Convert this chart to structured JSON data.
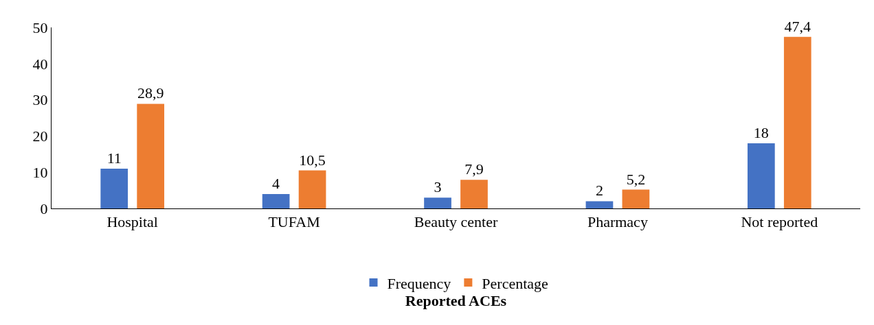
{
  "chart_data": {
    "type": "bar",
    "xlabel": "Reported ACEs",
    "categories": [
      "Hospital",
      "TUFAM",
      "Beauty center",
      "Pharmacy",
      "Not reported"
    ],
    "series": [
      {
        "name": "Frequency",
        "color": "#4472c4",
        "values": [
          11,
          4,
          3,
          2,
          18
        ],
        "value_labels": [
          "11",
          "4",
          "3",
          "2",
          "18"
        ]
      },
      {
        "name": "Percentage",
        "color": "#ed7d31",
        "values": [
          28.9,
          10.5,
          7.9,
          5.2,
          47.4
        ],
        "value_labels": [
          "28,9",
          "10,5",
          "7,9",
          "5,2",
          "47,4"
        ]
      }
    ],
    "ylim": [
      0,
      50
    ],
    "yticks": [
      0,
      10,
      20,
      30,
      40,
      50
    ],
    "legend": "bottom"
  }
}
